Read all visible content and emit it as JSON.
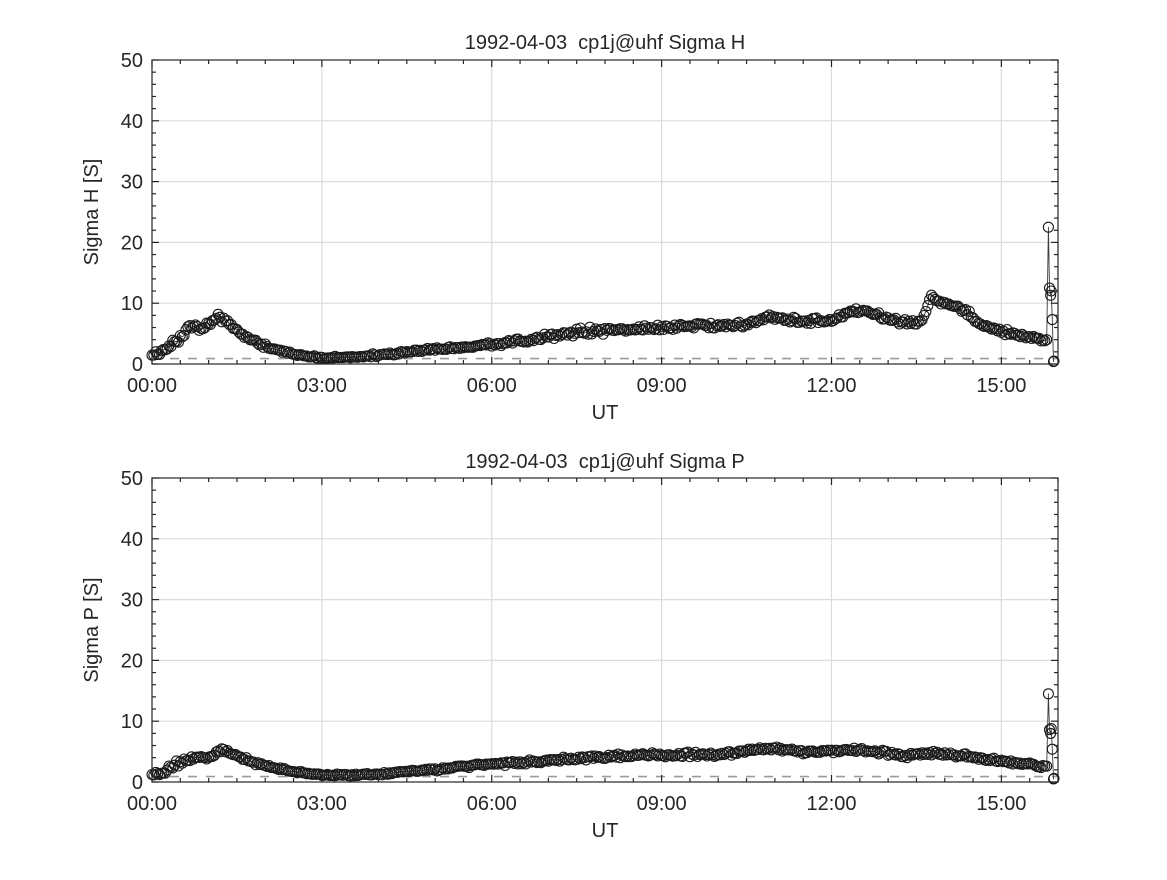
{
  "style": {
    "background": "#ffffff",
    "axis_color": "#262626",
    "text_color": "#262626",
    "grid_color": "#dcdcdc",
    "marker_color": "#1a1a1a",
    "line_color": "#3a3a3a",
    "ref_dash_color": "#9a9a9a",
    "ref_dash_value": 0.9
  },
  "chart_data": [
    {
      "type": "scatter",
      "title": "1992-04-03  cp1j@uhf Sigma H",
      "xlabel": "UT",
      "ylabel": "Sigma H [S]",
      "ylim": [
        0,
        50
      ],
      "xlim_hours": [
        0,
        16
      ],
      "ytick_values": [
        0,
        10,
        20,
        30,
        40,
        50
      ],
      "ytick_labels": [
        "0",
        "10",
        "20",
        "30",
        "40",
        "50"
      ],
      "xtick_hours": [
        0,
        3,
        6,
        9,
        12,
        15
      ],
      "xtick_labels": [
        "00:00",
        "03:00",
        "06:00",
        "09:00",
        "12:00",
        "15:00"
      ],
      "minor_x_step_hours": 0.5,
      "minor_y_step": 2,
      "sample_step_minutes": 2,
      "marker": "open-circle",
      "grid": true,
      "legend": "none",
      "keypoints_time_value_jitter": [
        [
          0.0,
          1.5,
          0.5
        ],
        [
          0.2,
          2.2,
          0.6
        ],
        [
          0.5,
          4.5,
          0.7
        ],
        [
          0.67,
          6.3,
          0.5
        ],
        [
          0.83,
          5.8,
          0.5
        ],
        [
          1.0,
          6.5,
          0.6
        ],
        [
          1.17,
          7.9,
          0.5
        ],
        [
          1.33,
          7.0,
          0.5
        ],
        [
          1.5,
          5.3,
          0.4
        ],
        [
          1.75,
          4.0,
          0.35
        ],
        [
          2.0,
          3.0,
          0.3
        ],
        [
          2.33,
          2.0,
          0.25
        ],
        [
          2.67,
          1.4,
          0.2
        ],
        [
          3.0,
          1.0,
          0.2
        ],
        [
          3.5,
          1.1,
          0.2
        ],
        [
          4.0,
          1.5,
          0.25
        ],
        [
          4.5,
          2.0,
          0.3
        ],
        [
          5.0,
          2.4,
          0.3
        ],
        [
          5.5,
          2.8,
          0.3
        ],
        [
          6.0,
          3.2,
          0.35
        ],
        [
          6.5,
          3.8,
          0.4
        ],
        [
          7.0,
          4.4,
          0.5
        ],
        [
          7.5,
          5.3,
          0.6
        ],
        [
          8.0,
          5.5,
          0.6
        ],
        [
          8.5,
          5.9,
          0.5
        ],
        [
          9.0,
          6.0,
          0.55
        ],
        [
          9.5,
          6.4,
          0.5
        ],
        [
          10.0,
          6.3,
          0.5
        ],
        [
          10.5,
          6.6,
          0.5
        ],
        [
          10.9,
          7.8,
          0.4
        ],
        [
          11.2,
          7.4,
          0.5
        ],
        [
          11.5,
          7.0,
          0.55
        ],
        [
          12.0,
          7.1,
          0.5
        ],
        [
          12.4,
          8.8,
          0.4
        ],
        [
          12.6,
          8.8,
          0.4
        ],
        [
          12.9,
          7.8,
          0.45
        ],
        [
          13.2,
          6.9,
          0.45
        ],
        [
          13.6,
          7.0,
          0.4
        ],
        [
          13.75,
          11.0,
          0.4
        ],
        [
          13.9,
          10.3,
          0.4
        ],
        [
          14.1,
          9.6,
          0.35
        ],
        [
          14.4,
          8.6,
          0.4
        ],
        [
          14.6,
          6.6,
          0.4
        ],
        [
          15.0,
          5.4,
          0.45
        ],
        [
          15.3,
          4.7,
          0.4
        ],
        [
          15.6,
          4.2,
          0.35
        ],
        [
          15.78,
          3.9,
          0.3
        ]
      ],
      "tail_points_time_value": [
        [
          15.8,
          4.0
        ],
        [
          15.83,
          22.5
        ],
        [
          15.85,
          12.5
        ],
        [
          15.87,
          11.3
        ],
        [
          15.88,
          12.0
        ],
        [
          15.9,
          7.3
        ],
        [
          15.92,
          0.4
        ],
        [
          15.93,
          0.5
        ]
      ]
    },
    {
      "type": "scatter",
      "title": "1992-04-03  cp1j@uhf Sigma P",
      "xlabel": "UT",
      "ylabel": "Sigma P [S]",
      "ylim": [
        0,
        50
      ],
      "xlim_hours": [
        0,
        16
      ],
      "ytick_values": [
        0,
        10,
        20,
        30,
        40,
        50
      ],
      "ytick_labels": [
        "0",
        "10",
        "20",
        "30",
        "40",
        "50"
      ],
      "xtick_hours": [
        0,
        3,
        6,
        9,
        12,
        15
      ],
      "xtick_labels": [
        "00:00",
        "03:00",
        "06:00",
        "09:00",
        "12:00",
        "15:00"
      ],
      "minor_x_step_hours": 0.5,
      "minor_y_step": 2,
      "sample_step_minutes": 2,
      "marker": "open-circle",
      "grid": true,
      "legend": "none",
      "keypoints_time_value_jitter": [
        [
          0.0,
          1.0,
          0.4
        ],
        [
          0.25,
          1.8,
          0.5
        ],
        [
          0.5,
          3.2,
          0.5
        ],
        [
          0.75,
          4.0,
          0.4
        ],
        [
          1.0,
          4.2,
          0.35
        ],
        [
          1.25,
          5.2,
          0.3
        ],
        [
          1.5,
          4.4,
          0.3
        ],
        [
          1.75,
          3.4,
          0.3
        ],
        [
          2.0,
          2.7,
          0.25
        ],
        [
          2.5,
          1.7,
          0.2
        ],
        [
          3.0,
          1.2,
          0.15
        ],
        [
          3.5,
          1.1,
          0.15
        ],
        [
          4.0,
          1.3,
          0.2
        ],
        [
          4.5,
          1.7,
          0.2
        ],
        [
          5.0,
          2.1,
          0.25
        ],
        [
          5.5,
          2.6,
          0.25
        ],
        [
          6.0,
          2.9,
          0.25
        ],
        [
          6.5,
          3.2,
          0.3
        ],
        [
          7.0,
          3.6,
          0.3
        ],
        [
          7.5,
          3.9,
          0.3
        ],
        [
          8.0,
          4.2,
          0.35
        ],
        [
          8.5,
          4.4,
          0.35
        ],
        [
          9.0,
          4.4,
          0.35
        ],
        [
          9.5,
          4.5,
          0.35
        ],
        [
          10.0,
          4.5,
          0.4
        ],
        [
          10.5,
          5.1,
          0.35
        ],
        [
          10.9,
          5.7,
          0.35
        ],
        [
          11.2,
          5.2,
          0.4
        ],
        [
          11.5,
          5.0,
          0.4
        ],
        [
          12.0,
          5.0,
          0.4
        ],
        [
          12.5,
          5.2,
          0.35
        ],
        [
          13.0,
          4.7,
          0.4
        ],
        [
          13.3,
          4.3,
          0.4
        ],
        [
          13.6,
          4.8,
          0.35
        ],
        [
          14.0,
          4.6,
          0.35
        ],
        [
          14.5,
          4.0,
          0.35
        ],
        [
          15.0,
          3.4,
          0.3
        ],
        [
          15.4,
          3.0,
          0.25
        ],
        [
          15.78,
          2.6,
          0.25
        ]
      ],
      "tail_points_time_value": [
        [
          15.8,
          2.6
        ],
        [
          15.83,
          14.5
        ],
        [
          15.85,
          8.6
        ],
        [
          15.87,
          8.0
        ],
        [
          15.88,
          8.8
        ],
        [
          15.9,
          5.4
        ],
        [
          15.92,
          0.5
        ],
        [
          15.93,
          0.6
        ]
      ]
    }
  ]
}
